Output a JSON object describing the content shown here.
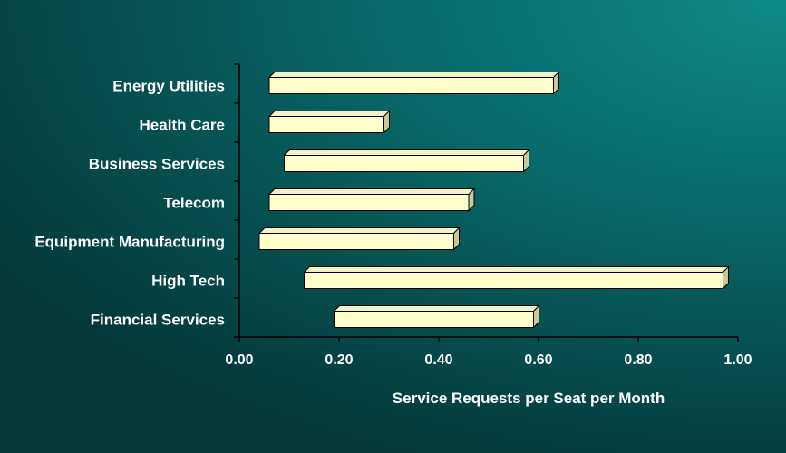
{
  "chart_data": {
    "type": "bar",
    "orientation": "horizontal",
    "style": "floating-range-3d",
    "categories": [
      "Energy Utilities",
      "Health Care",
      "Business Services",
      "Telecom",
      "Equipment Manufacturing",
      "High Tech",
      "Financial Services"
    ],
    "ranges": [
      [
        0.06,
        0.63
      ],
      [
        0.06,
        0.29
      ],
      [
        0.09,
        0.57
      ],
      [
        0.06,
        0.46
      ],
      [
        0.04,
        0.43
      ],
      [
        0.13,
        0.97
      ],
      [
        0.19,
        0.59
      ]
    ],
    "xlabel": "Service Requests per Seat per Month",
    "xlim": [
      0,
      1
    ],
    "xticks": [
      "0.00",
      "0.20",
      "0.40",
      "0.60",
      "0.80",
      "1.00"
    ],
    "grid": false,
    "legend": "none",
    "colors": {
      "bar_face": "#ffffcc",
      "bar_top": "#f2f2c8",
      "bar_side": "#c8c89a",
      "bar_outline": "#000000",
      "axis": "#000000",
      "text": "#ffffff"
    }
  }
}
